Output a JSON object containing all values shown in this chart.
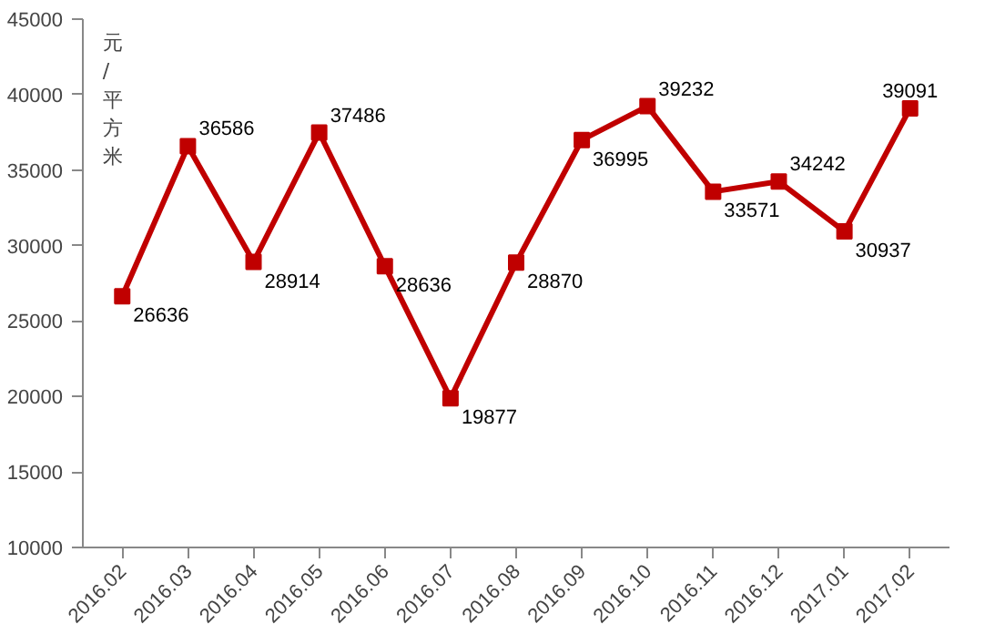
{
  "chart_data": {
    "type": "line",
    "ylabel": "元/平方米",
    "categories": [
      "2016.02",
      "2016.03",
      "2016.04",
      "2016.05",
      "2016.06",
      "2016.07",
      "2016.08",
      "2016.09",
      "2016.10",
      "2016.11",
      "2016.12",
      "2017.01",
      "2017.02"
    ],
    "series": [
      {
        "color": "#c00000",
        "values": [
          26636,
          36586,
          28914,
          37486,
          28636,
          19877,
          28870,
          36995,
          39232,
          33571,
          34242,
          30937,
          39091
        ]
      }
    ],
    "ylim": [
      10000,
      45000
    ],
    "yticks": [
      10000,
      15000,
      20000,
      25000,
      30000,
      35000,
      40000,
      45000
    ],
    "grid": false,
    "marker": "square",
    "line_style": "solid",
    "data_labels": true
  }
}
